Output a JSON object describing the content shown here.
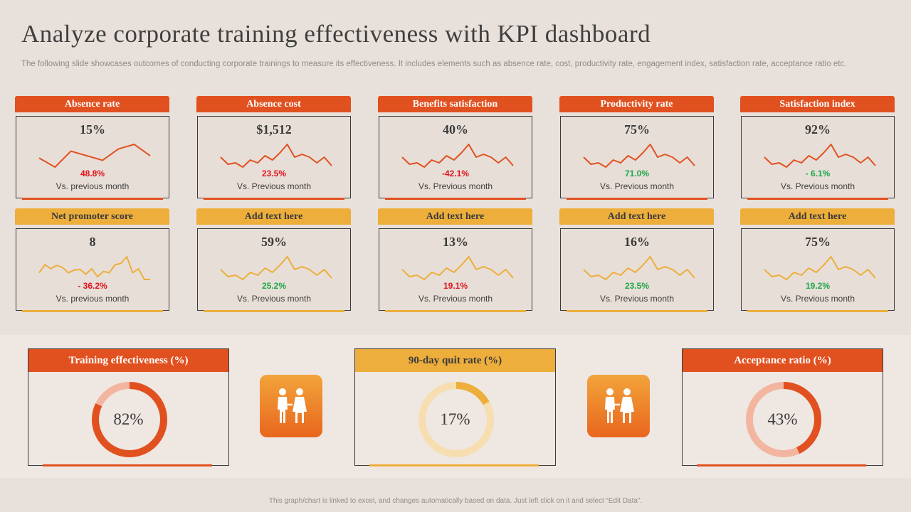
{
  "header": {
    "title": "Analyze corporate training effectiveness with KPI dashboard",
    "subtitle": "The following slide showcases outcomes of conducting corporate trainings to measure its effectiveness. It includes elements such as absence rate, cost, productivity rate,  engagement index, satisfaction rate, acceptance ratio etc."
  },
  "colors": {
    "orange": "#e15120",
    "yellow": "#edae3c",
    "negative": "#e0141e",
    "positive": "#1ea84b",
    "light_orange": "#f2b6a0",
    "light_yellow": "#f7deb0"
  },
  "kpi_cards": [
    {
      "title": "Absence rate",
      "value": "15%",
      "change": "48.8%",
      "direction": "neg",
      "caption": "Vs. previous month",
      "theme": "orange",
      "spark": [
        40,
        36,
        43,
        41,
        39,
        44,
        46,
        41
      ]
    },
    {
      "title": "Absence cost",
      "value": "$1,512",
      "change": "23.5%",
      "direction": "neg",
      "caption": "Vs. Previous month",
      "theme": "orange",
      "spark": [
        42,
        37,
        38,
        35,
        40,
        38,
        43,
        40,
        45,
        51,
        42,
        44,
        42,
        38,
        42,
        36
      ]
    },
    {
      "title": "Benefits satisfaction",
      "value": "40%",
      "change": "-42.1%",
      "direction": "neg",
      "caption": "Vs. Previous month",
      "theme": "orange",
      "spark": [
        42,
        37,
        38,
        35,
        40,
        38,
        43,
        40,
        45,
        51,
        42,
        44,
        42,
        38,
        42,
        36
      ]
    },
    {
      "title": "Productivity rate",
      "value": "75%",
      "change": "71.0%",
      "direction": "pos",
      "caption": "Vs. Previous month",
      "theme": "orange",
      "spark": [
        42,
        37,
        38,
        35,
        40,
        38,
        43,
        40,
        45,
        51,
        42,
        44,
        42,
        38,
        42,
        36
      ]
    },
    {
      "title": "Satisfaction index",
      "value": "92%",
      "change": "- 6.1%",
      "direction": "pos",
      "caption": "Vs. Previous month",
      "theme": "orange",
      "spark": [
        42,
        37,
        38,
        35,
        40,
        38,
        43,
        40,
        45,
        51,
        42,
        44,
        42,
        38,
        42,
        36
      ]
    },
    {
      "title": "Net promoter score",
      "value": "8",
      "change": "- 36.2%",
      "direction": "neg",
      "caption": "Vs. previous month",
      "theme": "yellow",
      "spark": [
        38,
        50,
        44,
        49,
        46,
        38,
        42,
        43,
        36,
        44,
        32,
        40,
        38,
        50,
        52,
        62,
        38,
        44,
        28,
        28
      ]
    },
    {
      "title": "Add text here",
      "value": "59%",
      "change": "25.2%",
      "direction": "pos",
      "caption": "Vs. Previous month",
      "theme": "yellow",
      "spark": [
        42,
        37,
        38,
        35,
        40,
        38,
        43,
        40,
        45,
        51,
        42,
        44,
        42,
        38,
        42,
        36
      ]
    },
    {
      "title": "Add text here",
      "value": "13%",
      "change": "19.1%",
      "direction": "neg",
      "caption": "Vs. Previous month",
      "theme": "yellow",
      "spark": [
        42,
        37,
        38,
        35,
        40,
        38,
        43,
        40,
        45,
        51,
        42,
        44,
        42,
        38,
        42,
        36
      ]
    },
    {
      "title": "Add text here",
      "value": "16%",
      "change": "23.5%",
      "direction": "pos",
      "caption": "Vs. Previous month",
      "theme": "yellow",
      "spark": [
        42,
        37,
        38,
        35,
        40,
        38,
        43,
        40,
        45,
        51,
        42,
        44,
        42,
        38,
        42,
        36
      ]
    },
    {
      "title": "Add text here",
      "value": "75%",
      "change": "19.2%",
      "direction": "pos",
      "caption": "Vs. Previous month",
      "theme": "yellow",
      "spark": [
        42,
        37,
        38,
        35,
        40,
        38,
        43,
        40,
        45,
        51,
        42,
        44,
        42,
        38,
        42,
        36
      ]
    }
  ],
  "donuts": [
    {
      "title": "Training effectiveness (%)",
      "value": 82,
      "label": "82%",
      "theme": "orange"
    },
    {
      "title": "90-day quit rate (%)",
      "value": 17,
      "label": "17%",
      "theme": "yellow"
    },
    {
      "title": "Acceptance ratio (%)",
      "value": 43,
      "label": "43%",
      "theme": "orange"
    }
  ],
  "icons": [
    "people-icon",
    "people-icon"
  ],
  "footer": "This graph/chart is linked to excel, and changes automatically based on data. Just left click on it and select “Edit Data”.",
  "chart_data": [
    {
      "type": "line",
      "title": "Absence rate",
      "values": [
        40,
        36,
        43,
        41,
        39,
        44,
        46,
        41
      ]
    },
    {
      "type": "line",
      "title": "Net promoter score",
      "values": [
        38,
        50,
        44,
        49,
        46,
        38,
        42,
        43,
        36,
        44,
        32,
        40,
        38,
        50,
        52,
        62,
        38,
        44,
        28,
        28
      ]
    },
    {
      "type": "pie",
      "title": "Training effectiveness (%)",
      "values": [
        82,
        18
      ]
    },
    {
      "type": "pie",
      "title": "90-day quit rate (%)",
      "values": [
        17,
        83
      ]
    },
    {
      "type": "pie",
      "title": "Acceptance ratio (%)",
      "values": [
        43,
        57
      ]
    }
  ]
}
